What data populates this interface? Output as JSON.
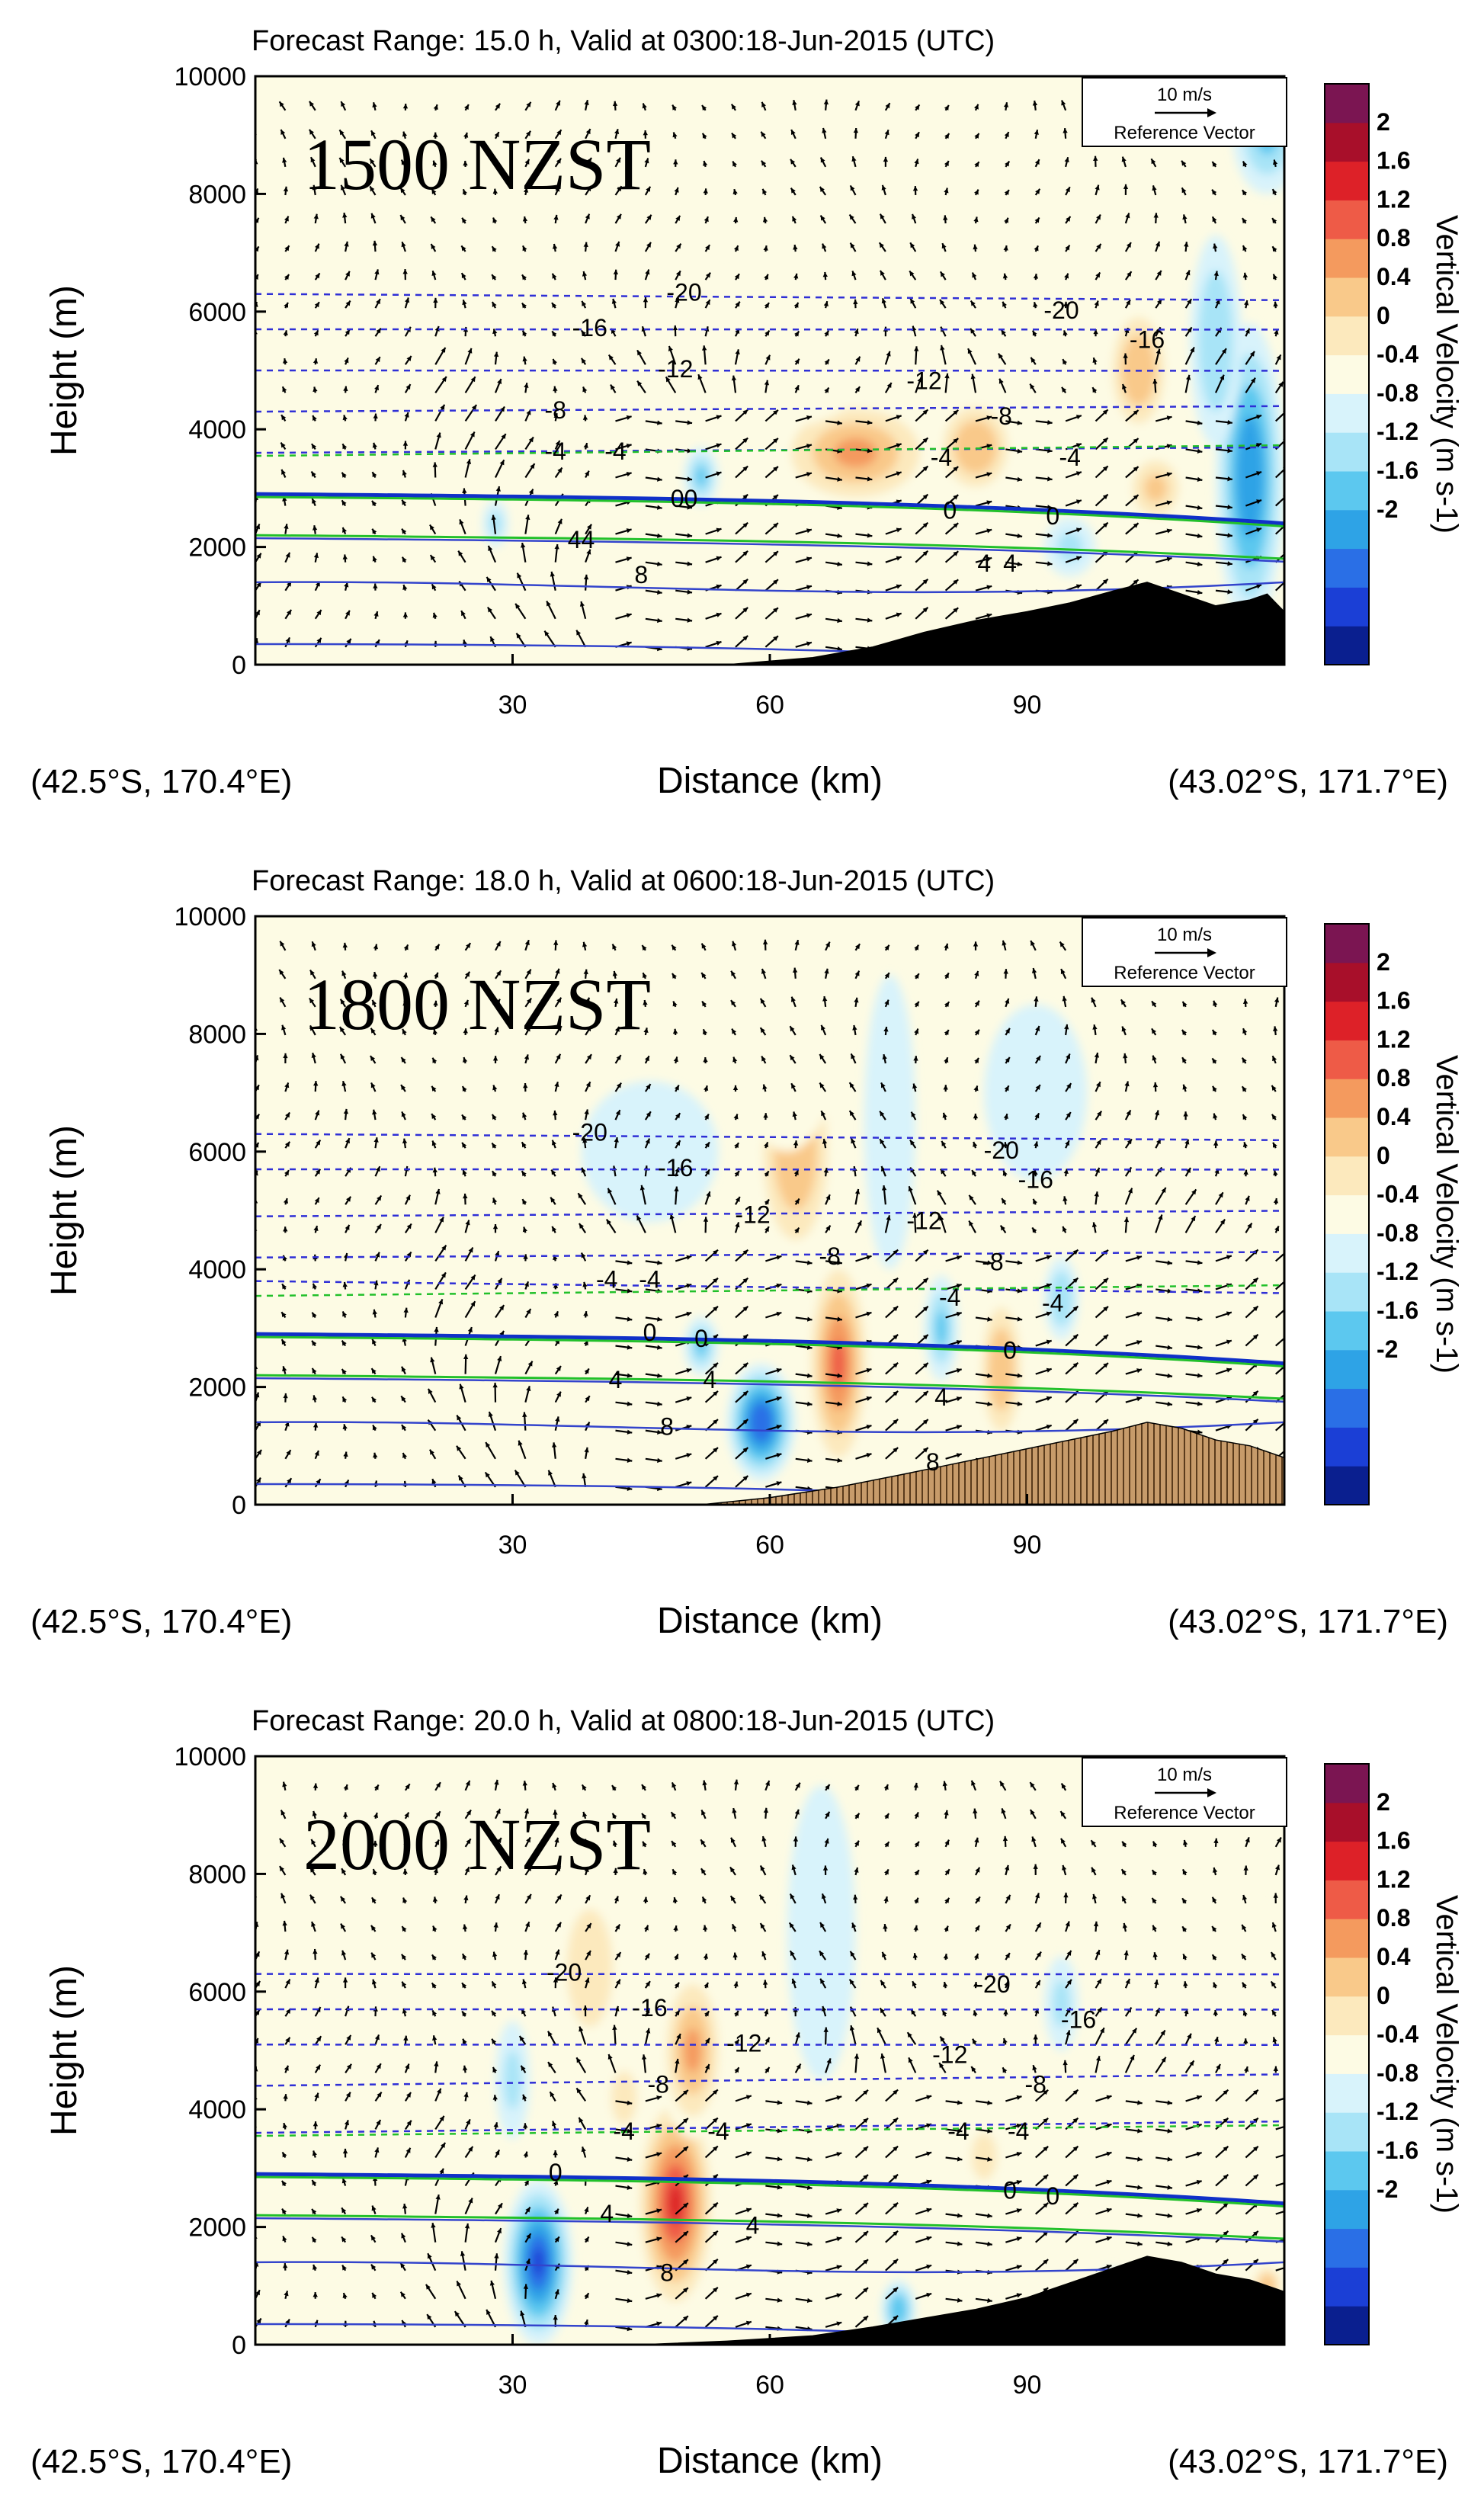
{
  "colors": {
    "colorbar": [
      "#0a1f8f",
      "#1b3fd6",
      "#2a6fe6",
      "#2ea3e6",
      "#5cc8ef",
      "#a8e4f7",
      "#d8f3fb",
      "#fdfbe4",
      "#fce9bd",
      "#f9c98a",
      "#f49a5e",
      "#ee5b47",
      "#dd2128",
      "#a80f2a",
      "#7b1552"
    ],
    "terrain_solid": "#000000",
    "terrain_hatched": "#c79b6a",
    "isotherm": "#2f2fd6",
    "freezing_blue": "#1030c8",
    "freezing_green": "#22c02a",
    "theta_line": "#3344cc"
  },
  "chart_data": [
    {
      "type": "contourf_cross_section",
      "title": "Forecast Range: 15.0 h, Valid at 0300:18-Jun-2015  (UTC)",
      "overlay_label": "1500 NZST",
      "xlabel": "Distance (km)",
      "ylabel": "Height (m)",
      "xlim": [
        0,
        120
      ],
      "ylim": [
        0,
        10000
      ],
      "xticks": [
        "30",
        "60",
        "90"
      ],
      "yticks": [
        "0",
        "2000",
        "4000",
        "6000",
        "8000",
        "10000"
      ],
      "left_coord": "(42.5°S, 170.4°E)",
      "right_coord": "(43.02°S, 171.7°E)",
      "colorbar_label": "Vertical Velocity (m s-1)",
      "colorbar_ticks": [
        "2",
        "1.6",
        "1.2",
        "0.8",
        "0.4",
        "0",
        "-0.4",
        "-0.8",
        "-1.2",
        "-1.6",
        "-2"
      ],
      "reference_vector": {
        "speed": "10 m/s",
        "label": "Reference Vector"
      },
      "terrain": "solid",
      "updrafts": [
        {
          "x": 70,
          "y": 3600,
          "rx": 10,
          "ry": 1000,
          "w": 1.4
        },
        {
          "x": 84,
          "y": 3700,
          "rx": 5,
          "ry": 900,
          "w": 1.2
        },
        {
          "x": 103,
          "y": 5000,
          "rx": 4,
          "ry": 1200,
          "w": 1.0
        },
        {
          "x": 105,
          "y": 3000,
          "rx": 4,
          "ry": 700,
          "w": 0.9
        },
        {
          "x": 86,
          "y": 6500,
          "rx": 10,
          "ry": 1500,
          "w": 0.3
        },
        {
          "x": 60,
          "y": 5500,
          "rx": 14,
          "ry": 1500,
          "w": 0.2
        },
        {
          "x": 78,
          "y": 9200,
          "rx": 18,
          "ry": 800,
          "w": 0.2
        },
        {
          "x": 50,
          "y": 8000,
          "rx": 6,
          "ry": 1500,
          "w": 0.2
        }
      ],
      "downdrafts": [
        {
          "x": 116,
          "y": 3200,
          "rx": 4,
          "ry": 2600,
          "w": -1.5
        },
        {
          "x": 112,
          "y": 5500,
          "rx": 3,
          "ry": 1800,
          "w": -0.7
        },
        {
          "x": 52,
          "y": 3200,
          "rx": 2,
          "ry": 500,
          "w": -0.8
        },
        {
          "x": 28,
          "y": 2400,
          "rx": 1.5,
          "ry": 400,
          "w": -0.5
        },
        {
          "x": 118,
          "y": 9000,
          "rx": 4,
          "ry": 1000,
          "w": -0.8
        },
        {
          "x": 95,
          "y": 2000,
          "rx": 3,
          "ry": 500,
          "w": -0.5
        }
      ],
      "terrain_profile": [
        [
          55,
          0
        ],
        [
          65,
          120
        ],
        [
          72,
          300
        ],
        [
          78,
          550
        ],
        [
          84,
          750
        ],
        [
          90,
          900
        ],
        [
          95,
          1050
        ],
        [
          100,
          1250
        ],
        [
          104,
          1400
        ],
        [
          108,
          1200
        ],
        [
          112,
          1000
        ],
        [
          116,
          1100
        ],
        [
          118,
          1200
        ],
        [
          120,
          900
        ]
      ],
      "isotherms": [
        {
          "label": "-20",
          "y": 6300,
          "label_x": 50
        },
        {
          "label": "-20",
          "y": 6000,
          "label_x": 94
        },
        {
          "label": "-16",
          "y": 5700,
          "label_x": 39
        },
        {
          "label": "-16",
          "y": 5500,
          "label_x": 104
        },
        {
          "label": "-12",
          "y": 5000,
          "label_x": 49
        },
        {
          "label": "-12",
          "y": 4800,
          "label_x": 78
        },
        {
          "label": "-8",
          "y": 4300,
          "label_x": 35
        },
        {
          "label": "-8",
          "y": 4200,
          "label_x": 87
        },
        {
          "label": "-4",
          "y": 3600,
          "label_x": 35
        },
        {
          "label": "-4",
          "y": 3600,
          "label_x": 42
        },
        {
          "label": "-4",
          "y": 3500,
          "label_x": 80
        },
        {
          "label": "-4",
          "y": 3500,
          "label_x": 95
        }
      ],
      "freezing_labels": [
        {
          "label": "00",
          "x": 50,
          "y": 2800
        },
        {
          "label": "0",
          "x": 81,
          "y": 2600
        },
        {
          "label": "0",
          "x": 93,
          "y": 2500
        }
      ],
      "warm_labels": [
        {
          "label": "44",
          "x": 38,
          "y": 2100
        },
        {
          "label": "4",
          "x": 85,
          "y": 1700
        },
        {
          "label": "4",
          "x": 88,
          "y": 1700
        },
        {
          "label": "8",
          "x": 45,
          "y": 1500
        }
      ]
    },
    {
      "type": "contourf_cross_section",
      "title": "Forecast Range: 18.0 h, Valid at 0600:18-Jun-2015  (UTC)",
      "overlay_label": "1800 NZST",
      "xlabel": "Distance (km)",
      "ylabel": "Height (m)",
      "xlim": [
        0,
        120
      ],
      "ylim": [
        0,
        10000
      ],
      "xticks": [
        "30",
        "60",
        "90"
      ],
      "yticks": [
        "0",
        "2000",
        "4000",
        "6000",
        "8000",
        "10000"
      ],
      "left_coord": "(42.5°S, 170.4°E)",
      "right_coord": "(43.02°S, 171.7°E)",
      "colorbar_label": "Vertical Velocity (m s-1)",
      "colorbar_ticks": [
        "2",
        "1.6",
        "1.2",
        "0.8",
        "0.4",
        "0",
        "-0.4",
        "-0.8",
        "-1.2",
        "-1.6",
        "-2"
      ],
      "reference_vector": {
        "speed": "10 m/s",
        "label": "Reference Vector"
      },
      "terrain": "hatched",
      "updrafts": [
        {
          "x": 63,
          "y": 6000,
          "rx": 5,
          "ry": 2000,
          "w": 1.2
        },
        {
          "x": 68,
          "y": 2400,
          "rx": 4,
          "ry": 2000,
          "w": 1.6
        },
        {
          "x": 62,
          "y": 8000,
          "rx": 6,
          "ry": 2000,
          "w": 0.4
        },
        {
          "x": 87,
          "y": 2300,
          "rx": 3,
          "ry": 1400,
          "w": 1.1
        },
        {
          "x": 86,
          "y": 5000,
          "rx": 3,
          "ry": 1500,
          "w": 0.4
        },
        {
          "x": 105,
          "y": 6000,
          "rx": 8,
          "ry": 1000,
          "w": 0.15
        },
        {
          "x": 5,
          "y": 2500,
          "rx": 5,
          "ry": 300,
          "w": 0.2
        }
      ],
      "downdrafts": [
        {
          "x": 59,
          "y": 1400,
          "rx": 4,
          "ry": 1000,
          "w": -1.8
        },
        {
          "x": 52,
          "y": 2700,
          "rx": 2,
          "ry": 500,
          "w": -0.9
        },
        {
          "x": 80,
          "y": 3000,
          "rx": 2,
          "ry": 900,
          "w": -0.8
        },
        {
          "x": 94,
          "y": 3500,
          "rx": 2,
          "ry": 700,
          "w": -0.7
        },
        {
          "x": 46,
          "y": 6000,
          "rx": 8,
          "ry": 1200,
          "w": -0.3
        },
        {
          "x": 91,
          "y": 7000,
          "rx": 6,
          "ry": 1500,
          "w": -0.3
        },
        {
          "x": 74,
          "y": 6500,
          "rx": 3,
          "ry": 2500,
          "w": -0.3
        }
      ],
      "terrain_profile": [
        [
          52,
          0
        ],
        [
          60,
          120
        ],
        [
          68,
          300
        ],
        [
          75,
          500
        ],
        [
          80,
          650
        ],
        [
          85,
          800
        ],
        [
          90,
          950
        ],
        [
          95,
          1100
        ],
        [
          100,
          1250
        ],
        [
          104,
          1400
        ],
        [
          108,
          1300
        ],
        [
          112,
          1100
        ],
        [
          116,
          1000
        ],
        [
          120,
          800
        ]
      ],
      "isotherms": [
        {
          "label": "-20",
          "y": 6300,
          "label_x": 39
        },
        {
          "label": "-20",
          "y": 6000,
          "label_x": 87
        },
        {
          "label": "-16",
          "y": 5700,
          "label_x": 49
        },
        {
          "label": "-16",
          "y": 5500,
          "label_x": 91
        },
        {
          "label": "-12",
          "y": 4900,
          "label_x": 58
        },
        {
          "label": "-12",
          "y": 4800,
          "label_x": 78
        },
        {
          "label": "-8",
          "y": 4200,
          "label_x": 67
        },
        {
          "label": "-8",
          "y": 4100,
          "label_x": 86
        },
        {
          "label": "-4",
          "y": 3800,
          "label_x": 41
        },
        {
          "label": "-4",
          "y": 3800,
          "label_x": 46
        },
        {
          "label": "-4",
          "y": 3500,
          "label_x": 81
        },
        {
          "label": "-4",
          "y": 3400,
          "label_x": 93
        }
      ],
      "freezing_labels": [
        {
          "label": "0",
          "x": 46,
          "y": 2900
        },
        {
          "label": "0",
          "x": 52,
          "y": 2800
        },
        {
          "label": "0",
          "x": 88,
          "y": 2600
        }
      ],
      "warm_labels": [
        {
          "label": "4",
          "x": 42,
          "y": 2100
        },
        {
          "label": "4",
          "x": 53,
          "y": 2100
        },
        {
          "label": "4",
          "x": 80,
          "y": 1800
        },
        {
          "label": "8",
          "x": 48,
          "y": 1300
        },
        {
          "label": "8",
          "x": 79,
          "y": 700
        }
      ]
    },
    {
      "type": "contourf_cross_section",
      "title": "Forecast Range: 20.0 h, Valid at 0800:18-Jun-2015  (UTC)",
      "overlay_label": "2000 NZST",
      "xlabel": "Distance (km)",
      "ylabel": "Height (m)",
      "xlim": [
        0,
        120
      ],
      "ylim": [
        0,
        10000
      ],
      "xticks": [
        "30",
        "60",
        "90"
      ],
      "yticks": [
        "0",
        "2000",
        "4000",
        "6000",
        "8000",
        "10000"
      ],
      "left_coord": "(42.5°S, 170.4°E)",
      "right_coord": "(43.02°S, 171.7°E)",
      "colorbar_label": "Vertical Velocity (m s-1)",
      "colorbar_ticks": [
        "2",
        "1.6",
        "1.2",
        "0.8",
        "0.4",
        "0",
        "-0.4",
        "-0.8",
        "-1.2",
        "-1.6",
        "-2"
      ],
      "reference_vector": {
        "speed": "10 m/s",
        "label": "Reference Vector"
      },
      "terrain": "solid",
      "updrafts": [
        {
          "x": 49,
          "y": 2400,
          "rx": 5,
          "ry": 2000,
          "w": 2.0
        },
        {
          "x": 51,
          "y": 5000,
          "rx": 4,
          "ry": 1500,
          "w": 1.3
        },
        {
          "x": 39,
          "y": 6400,
          "rx": 4,
          "ry": 1500,
          "w": 0.7
        },
        {
          "x": 43,
          "y": 4200,
          "rx": 3,
          "ry": 900,
          "w": 0.6
        },
        {
          "x": 85,
          "y": 3200,
          "rx": 3,
          "ry": 800,
          "w": 0.5
        },
        {
          "x": 110,
          "y": 7000,
          "rx": 8,
          "ry": 900,
          "w": 0.2
        },
        {
          "x": 82,
          "y": 2000,
          "rx": 2,
          "ry": 500,
          "w": 0.3
        },
        {
          "x": 118,
          "y": 1000,
          "rx": 2,
          "ry": 400,
          "w": 1.2
        }
      ],
      "downdrafts": [
        {
          "x": 33,
          "y": 1400,
          "rx": 4,
          "ry": 1400,
          "w": -2.0
        },
        {
          "x": 30,
          "y": 4500,
          "rx": 2,
          "ry": 1000,
          "w": -0.6
        },
        {
          "x": 66,
          "y": 7000,
          "rx": 4,
          "ry": 2500,
          "w": -0.2
        },
        {
          "x": 94,
          "y": 5800,
          "rx": 2,
          "ry": 800,
          "w": -0.5
        },
        {
          "x": 75,
          "y": 600,
          "rx": 2,
          "ry": 500,
          "w": -1.0
        },
        {
          "x": 100,
          "y": 900,
          "rx": 2,
          "ry": 400,
          "w": -0.7
        }
      ],
      "terrain_profile": [
        [
          45,
          0
        ],
        [
          55,
          60
        ],
        [
          65,
          150
        ],
        [
          72,
          300
        ],
        [
          78,
          450
        ],
        [
          84,
          600
        ],
        [
          90,
          800
        ],
        [
          95,
          1050
        ],
        [
          100,
          1300
        ],
        [
          104,
          1500
        ],
        [
          108,
          1400
        ],
        [
          112,
          1200
        ],
        [
          116,
          1100
        ],
        [
          120,
          900
        ]
      ],
      "isotherms": [
        {
          "label": "-20",
          "y": 6300,
          "label_x": 36
        },
        {
          "label": "-20",
          "y": 6100,
          "label_x": 86
        },
        {
          "label": "-16",
          "y": 5700,
          "label_x": 46
        },
        {
          "label": "-16",
          "y": 5500,
          "label_x": 96
        },
        {
          "label": "-12",
          "y": 5100,
          "label_x": 57
        },
        {
          "label": "-12",
          "y": 4900,
          "label_x": 81
        },
        {
          "label": "-8",
          "y": 4400,
          "label_x": 47
        },
        {
          "label": "-8",
          "y": 4400,
          "label_x": 91
        },
        {
          "label": "-4",
          "y": 3600,
          "label_x": 43
        },
        {
          "label": "-4",
          "y": 3600,
          "label_x": 54
        },
        {
          "label": "-4",
          "y": 3600,
          "label_x": 82
        },
        {
          "label": "-4",
          "y": 3600,
          "label_x": 89
        }
      ],
      "freezing_labels": [
        {
          "label": "0",
          "x": 35,
          "y": 2900
        },
        {
          "label": "0",
          "x": 88,
          "y": 2600
        },
        {
          "label": "0",
          "x": 93,
          "y": 2500
        }
      ],
      "warm_labels": [
        {
          "label": "4",
          "x": 41,
          "y": 2200
        },
        {
          "label": "4",
          "x": 58,
          "y": 2000
        },
        {
          "label": "8",
          "x": 48,
          "y": 1200
        }
      ]
    }
  ]
}
